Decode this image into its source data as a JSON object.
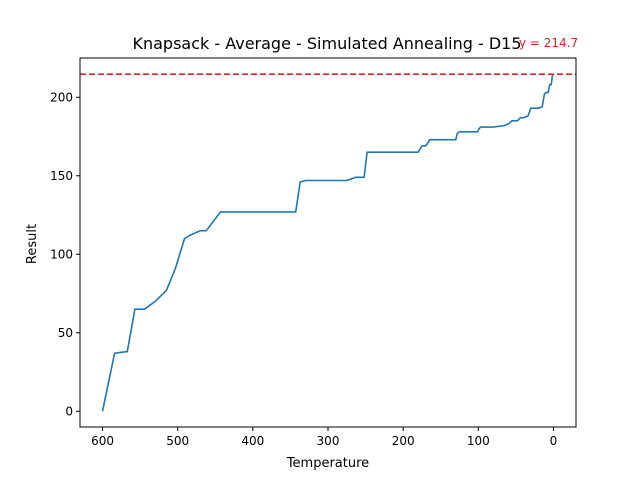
{
  "chart_data": {
    "type": "line",
    "title": "Knapsack - Average - Simulated Annealing - D15",
    "xlabel": "Temperature",
    "ylabel": "Result",
    "x_inverted": true,
    "xlim": [
      630,
      -30
    ],
    "ylim": [
      -10,
      225
    ],
    "x_ticks": [
      600,
      500,
      400,
      300,
      200,
      100,
      0
    ],
    "y_ticks": [
      0,
      50,
      100,
      150,
      200
    ],
    "grid": false,
    "reference_line": {
      "value": 214.7,
      "label": "y = 214.7",
      "color": "#d62728",
      "style": "dashed"
    },
    "series": [
      {
        "color": "#1f77b4",
        "x": [
          600,
          584,
          567,
          557,
          544,
          530,
          515,
          503,
          491,
          484,
          470,
          462,
          443,
          390,
          343,
          337,
          330,
          280,
          275,
          263,
          252,
          248,
          240,
          230,
          220,
          180,
          175,
          170,
          167,
          165,
          159,
          151,
          130,
          128,
          125,
          101,
          99,
          97,
          95,
          90,
          80,
          65,
          60,
          55,
          48,
          44,
          40,
          34,
          30,
          25,
          20,
          15,
          12,
          10,
          7,
          5,
          3,
          1
        ],
        "y": [
          0,
          37,
          38,
          65,
          65,
          70,
          77,
          91,
          110,
          112,
          115,
          115,
          127,
          127,
          127,
          146,
          147,
          147,
          147,
          149,
          149,
          165,
          165,
          165,
          165,
          165,
          169,
          169,
          171,
          173,
          173,
          173,
          173,
          177,
          178,
          178,
          180,
          181,
          181,
          181,
          181,
          182,
          183,
          185,
          185,
          187,
          187,
          188,
          193,
          193,
          193,
          194,
          202,
          203,
          203,
          208,
          208,
          215
        ]
      }
    ]
  }
}
